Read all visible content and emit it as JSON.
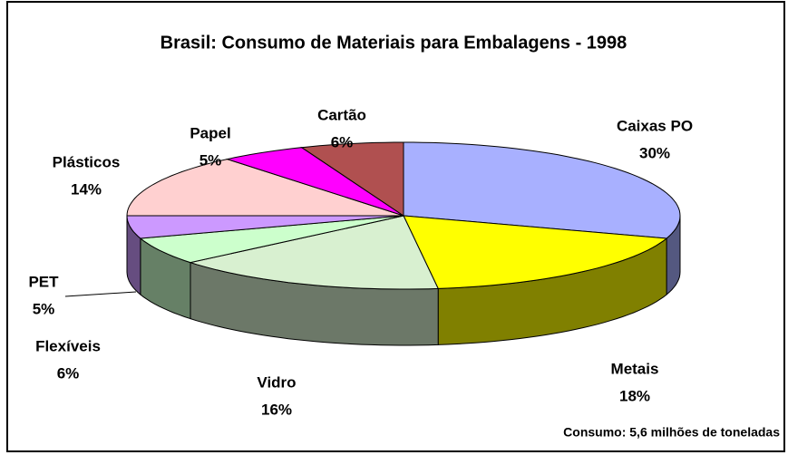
{
  "chart_data": {
    "type": "pie3d",
    "title": "Brasil: Consumo de Materiais para Embalagens - 1998",
    "annotation": "Consumo: 5,6 milhões de toneladas",
    "categories": [
      "Caixas PO",
      "Metais",
      "Vidro",
      "Flexíveis",
      "PET",
      "Plásticos",
      "Papel",
      "Cartão"
    ],
    "values": [
      30,
      18,
      16,
      6,
      5,
      14,
      5,
      6
    ],
    "value_labels": [
      "30%",
      "18%",
      "16%",
      "6%",
      "5%",
      "14%",
      "5%",
      "6%"
    ],
    "colors": [
      "#a8b0ff",
      "#ffff00",
      "#d8f0d0",
      "#ccffcc",
      "#cc99ff",
      "#ffd0d0",
      "#ff00ff",
      "#b05050"
    ]
  }
}
